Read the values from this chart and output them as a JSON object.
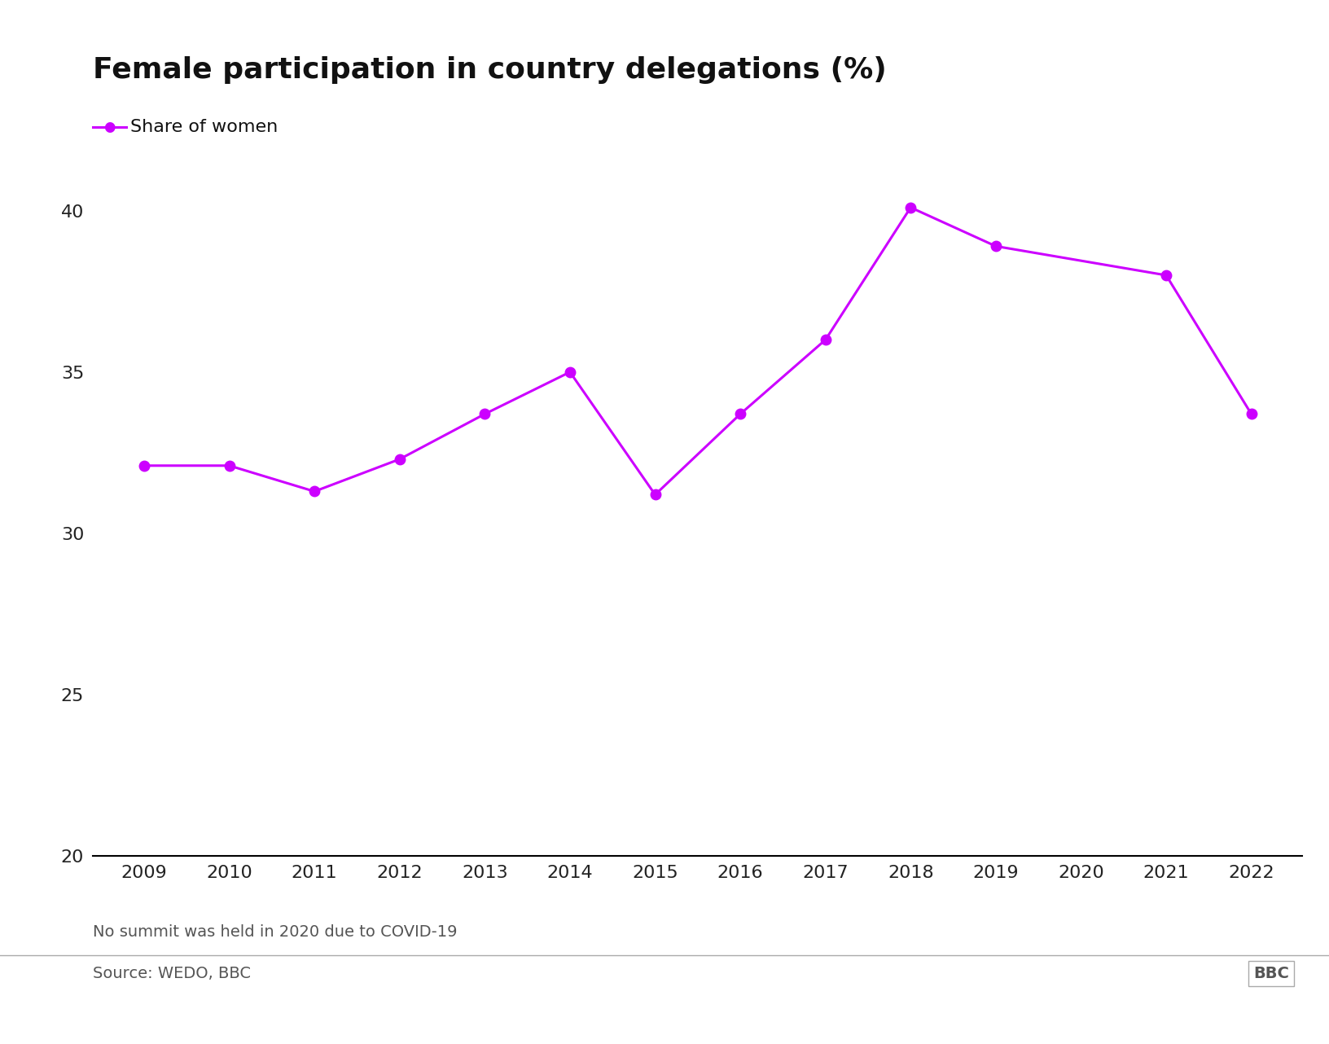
{
  "title": "Female participation in country delegations (%)",
  "years": [
    2009,
    2010,
    2011,
    2012,
    2013,
    2014,
    2015,
    2016,
    2017,
    2018,
    2019,
    2021,
    2022
  ],
  "values": [
    32.1,
    32.1,
    31.3,
    32.3,
    33.7,
    35.0,
    31.2,
    33.7,
    36.0,
    40.1,
    38.9,
    38.0,
    33.7
  ],
  "xticks": [
    2009,
    2010,
    2011,
    2012,
    2013,
    2014,
    2015,
    2016,
    2017,
    2018,
    2019,
    2020,
    2021,
    2022
  ],
  "yticks": [
    20,
    25,
    30,
    35,
    40
  ],
  "ylim": [
    20,
    42
  ],
  "xlim": [
    2008.4,
    2022.6
  ],
  "line_color": "#CC00FF",
  "marker": "o",
  "marker_size": 9,
  "line_width": 2.2,
  "legend_label": "Share of women",
  "note": "No summit was held in 2020 due to COVID-19",
  "source": "Source: WEDO, BBC",
  "bbc_logo": "BBC",
  "background_color": "#ffffff",
  "bottom_spine_color": "#000000",
  "tick_label_color": "#222222",
  "title_fontsize": 26,
  "tick_fontsize": 16,
  "legend_fontsize": 16,
  "note_fontsize": 14,
  "source_fontsize": 14
}
